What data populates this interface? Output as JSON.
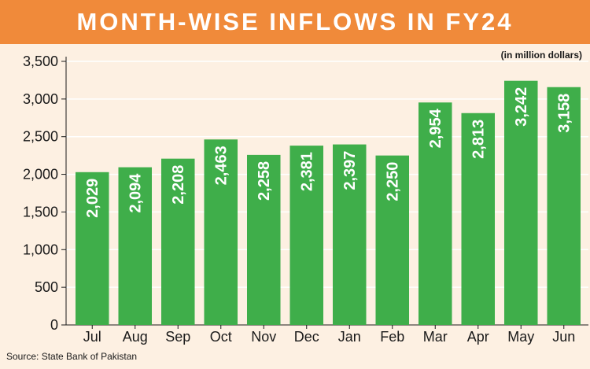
{
  "header": {
    "title": "MONTH-WISE INFLOWS IN FY24"
  },
  "unit_note": "(in million dollars)",
  "source": "Source: State Bank of Pakistan",
  "colors": {
    "banner": "#f08a3a",
    "bar": "#3fae4a",
    "background": "#fdf0e2",
    "grid": "#ffffff"
  },
  "chart_data": {
    "type": "bar",
    "title": "MONTH-WISE INFLOWS IN FY24",
    "categories": [
      "Jul",
      "Aug",
      "Sep",
      "Oct",
      "Nov",
      "Dec",
      "Jan",
      "Feb",
      "Mar",
      "Apr",
      "May",
      "Jun"
    ],
    "values": [
      2029,
      2094,
      2208,
      2463,
      2258,
      2381,
      2397,
      2250,
      2954,
      2813,
      3242,
      3158
    ],
    "value_labels": [
      "2,029",
      "2,094",
      "2,208",
      "2,463",
      "2,258",
      "2,381",
      "2,397",
      "2,250",
      "2,954",
      "2,813",
      "3,242",
      "3,158"
    ],
    "ylim": [
      0,
      3500
    ],
    "yticks": [
      0,
      500,
      1000,
      1500,
      2000,
      2500,
      3000,
      3500
    ],
    "ytick_labels": [
      "0",
      "500",
      "1,000",
      "1,500",
      "2,000",
      "2,500",
      "3,000",
      "3,500"
    ],
    "grid": true,
    "xlabel": "",
    "ylabel": ""
  }
}
